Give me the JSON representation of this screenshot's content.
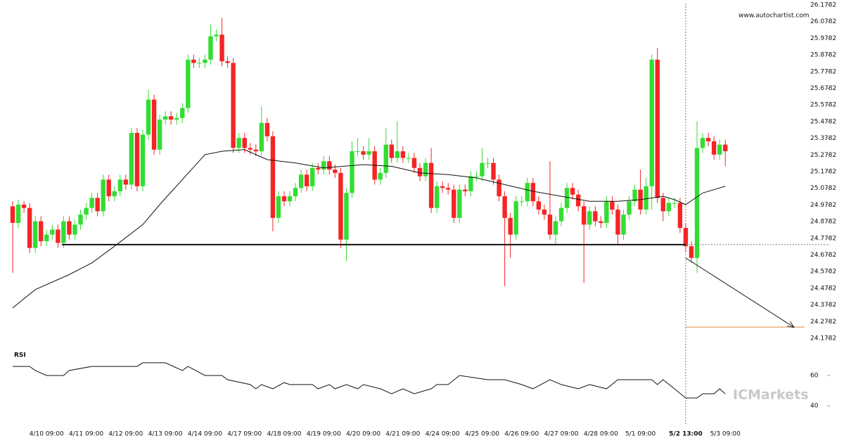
{
  "chart_data": {
    "type": "candlestick",
    "source": "www.autochartist.com",
    "watermark": "ICMarkets",
    "categories": [
      null,
      null,
      null,
      null,
      null,
      null,
      "4/10 09:00",
      null,
      null,
      null,
      null,
      null,
      null,
      "4/11 09:00",
      null,
      null,
      null,
      null,
      null,
      null,
      "4/12 09:00",
      null,
      null,
      null,
      null,
      null,
      null,
      "4/13 09:00",
      null,
      null,
      null,
      null,
      null,
      null,
      "4/14 09:00",
      null,
      null,
      null,
      null,
      null,
      null,
      "4/17 09:00",
      null,
      null,
      null,
      null,
      null,
      null,
      "4/18 09:00",
      null,
      null,
      null,
      null,
      null,
      null,
      "4/19 09:00",
      null,
      null,
      null,
      null,
      null,
      null,
      "4/20 09:00",
      null,
      null,
      null,
      null,
      null,
      null,
      "4/21 09:00",
      null,
      null,
      null,
      null,
      null,
      null,
      "4/24 09:00",
      null,
      null,
      null,
      null,
      null,
      null,
      "4/25 09:00",
      null,
      null,
      null,
      null,
      null,
      null,
      "4/26 09:00",
      null,
      null,
      null,
      null,
      null,
      null,
      "4/27 09:00",
      null,
      null,
      null,
      null,
      null,
      null,
      "4/28 09:00",
      null,
      null,
      null,
      null,
      null,
      null,
      "5/1 09:00",
      null,
      null,
      null,
      null,
      null,
      null,
      null,
      "5/2 13:00",
      null,
      null,
      null,
      null,
      null,
      null,
      "5/3 09:00"
    ],
    "open": [
      24.97,
      24.87,
      24.98,
      24.96,
      24.72,
      24.88,
      24.76,
      24.8,
      24.83,
      24.75,
      24.88,
      24.8,
      24.86,
      24.92,
      24.96,
      25.02,
      24.94,
      25.13,
      25.03,
      25.06,
      25.13,
      25.1,
      25.41,
      25.09,
      25.4,
      25.61,
      25.31,
      25.49,
      25.51,
      25.49,
      25.5,
      25.56,
      25.85,
      25.83,
      25.83,
      25.85,
      25.99,
      26.0,
      25.84,
      25.83,
      25.32,
      25.38,
      25.32,
      25.31,
      25.3,
      25.47,
      25.39,
      24.9,
      25.03,
      25.0,
      25.03,
      25.08,
      25.16,
      25.09,
      25.2,
      25.19,
      25.24,
      25.19,
      25.17,
      24.77,
      25.05,
      25.3,
      25.3,
      25.28,
      25.3,
      25.13,
      25.17,
      25.34,
      25.26,
      25.3,
      25.26,
      25.26,
      25.2,
      25.15,
      25.23,
      24.96,
      25.09,
      25.08,
      25.07,
      24.9,
      25.07,
      25.06,
      25.15,
      25.15,
      25.23,
      25.23,
      25.13,
      25.03,
      24.9,
      24.8,
      25.0,
      25.0,
      25.11,
      25.0,
      24.95,
      24.92,
      24.8,
      24.88,
      24.96,
      25.08,
      25.04,
      24.97,
      24.86,
      24.94,
      24.88,
      24.87,
      25.0,
      24.95,
      24.8,
      24.92,
      25.0,
      25.07,
      24.95,
      25.09,
      25.85,
      25.02,
      24.94,
      24.99,
      24.99,
      24.84,
      24.73,
      24.66,
      25.32,
      25.38,
      25.36,
      25.28,
      25.34
    ],
    "high": [
      25.0,
      25.01,
      25.0,
      24.99,
      24.91,
      24.91,
      24.83,
      24.86,
      24.86,
      24.91,
      24.91,
      24.89,
      24.95,
      24.99,
      25.05,
      25.05,
      25.16,
      25.16,
      25.09,
      25.16,
      25.16,
      25.44,
      25.44,
      25.43,
      25.67,
      25.64,
      25.52,
      25.54,
      25.54,
      25.53,
      25.59,
      25.88,
      25.88,
      25.86,
      25.88,
      26.06,
      26.03,
      26.1,
      25.87,
      25.86,
      25.41,
      25.41,
      25.35,
      25.34,
      25.57,
      25.5,
      25.42,
      25.06,
      25.06,
      25.06,
      25.11,
      25.19,
      25.19,
      25.23,
      25.23,
      25.27,
      25.27,
      25.22,
      25.2,
      25.08,
      25.36,
      25.38,
      25.33,
      25.38,
      25.33,
      25.2,
      25.44,
      25.37,
      25.48,
      25.33,
      25.29,
      25.29,
      25.23,
      25.26,
      25.32,
      25.12,
      25.12,
      25.11,
      25.1,
      25.1,
      25.1,
      25.18,
      25.18,
      25.32,
      25.26,
      25.26,
      25.16,
      25.06,
      24.93,
      25.03,
      25.03,
      25.14,
      25.14,
      25.03,
      24.98,
      25.24,
      24.91,
      24.99,
      25.11,
      25.11,
      25.07,
      25.0,
      24.97,
      24.97,
      24.91,
      25.03,
      25.03,
      24.98,
      24.95,
      25.03,
      25.1,
      25.19,
      25.14,
      25.88,
      25.92,
      25.05,
      25.02,
      25.02,
      25.02,
      24.87,
      24.76,
      25.48,
      25.41,
      25.41,
      25.39,
      25.37,
      25.37
    ],
    "low": [
      24.57,
      24.84,
      24.93,
      24.69,
      24.69,
      24.73,
      24.73,
      24.77,
      24.72,
      24.72,
      24.77,
      24.77,
      24.83,
      24.89,
      24.93,
      24.91,
      24.91,
      25.0,
      25.0,
      25.03,
      25.07,
      25.07,
      25.06,
      25.06,
      25.37,
      25.28,
      25.28,
      25.46,
      25.46,
      25.46,
      25.47,
      25.53,
      25.8,
      25.8,
      25.8,
      25.82,
      25.96,
      25.81,
      25.8,
      25.29,
      25.29,
      25.29,
      25.28,
      25.27,
      25.27,
      25.36,
      24.82,
      24.87,
      24.97,
      24.97,
      25.0,
      25.05,
      25.06,
      25.06,
      25.16,
      25.16,
      25.16,
      25.14,
      24.72,
      24.64,
      25.02,
      25.27,
      25.25,
      25.25,
      25.1,
      25.1,
      25.14,
      25.23,
      25.23,
      25.23,
      25.23,
      25.17,
      25.12,
      25.12,
      24.93,
      24.93,
      25.05,
      25.04,
      24.87,
      24.87,
      25.03,
      25.03,
      25.12,
      25.12,
      25.2,
      25.1,
      25.0,
      24.49,
      24.66,
      24.77,
      24.97,
      24.97,
      24.97,
      24.92,
      24.89,
      24.77,
      24.74,
      24.85,
      24.93,
      25.01,
      24.94,
      24.51,
      24.83,
      24.85,
      24.84,
      24.84,
      24.92,
      24.74,
      24.77,
      24.89,
      24.97,
      24.92,
      24.92,
      24.95,
      24.99,
      24.88,
      24.91,
      24.96,
      24.81,
      24.7,
      24.63,
      24.57,
      25.29,
      25.33,
      25.25,
      25.25,
      25.21
    ],
    "close": [
      24.87,
      24.98,
      24.96,
      24.72,
      24.88,
      24.76,
      24.8,
      24.83,
      24.75,
      24.88,
      24.8,
      24.86,
      24.92,
      24.96,
      25.02,
      24.94,
      25.13,
      25.03,
      25.06,
      25.13,
      25.1,
      25.41,
      25.09,
      25.4,
      25.61,
      25.31,
      25.49,
      25.51,
      25.49,
      25.5,
      25.56,
      25.85,
      25.83,
      25.83,
      25.85,
      25.99,
      26.0,
      25.84,
      25.83,
      25.32,
      25.38,
      25.32,
      25.31,
      25.3,
      25.47,
      25.39,
      24.9,
      25.03,
      25.0,
      25.03,
      25.08,
      25.16,
      25.09,
      25.2,
      25.19,
      25.24,
      25.19,
      25.17,
      24.77,
      25.05,
      25.3,
      25.3,
      25.28,
      25.3,
      25.13,
      25.17,
      25.34,
      25.26,
      25.3,
      25.26,
      25.26,
      25.2,
      25.15,
      25.23,
      24.96,
      25.09,
      25.08,
      25.07,
      24.9,
      25.07,
      25.06,
      25.15,
      25.15,
      25.23,
      25.23,
      25.13,
      25.03,
      24.9,
      24.8,
      25.0,
      25.0,
      25.11,
      25.0,
      24.95,
      24.92,
      24.8,
      24.88,
      24.96,
      25.08,
      25.04,
      24.97,
      24.86,
      24.94,
      24.88,
      24.87,
      25.0,
      24.95,
      24.8,
      24.92,
      25.0,
      25.07,
      24.95,
      25.09,
      25.85,
      25.02,
      24.94,
      24.99,
      24.99,
      24.84,
      24.73,
      24.66,
      25.32,
      25.38,
      25.36,
      25.28,
      25.34,
      25.3
    ],
    "up_color": "#33dd33",
    "down_color": "#f52525",
    "xlim": [
      -2.24,
      144.5
    ],
    "ylim": [
      24.1402,
      26.2077
    ],
    "yticks": [
      24.1782,
      24.2782,
      24.3782,
      24.4782,
      24.5782,
      24.6782,
      24.7782,
      24.8782,
      24.9782,
      25.0782,
      25.1782,
      25.2782,
      25.3782,
      25.4782,
      25.5782,
      25.6782,
      25.7782,
      25.8782,
      25.9782,
      26.0782,
      26.1782
    ],
    "marker_index": 119,
    "ma": {
      "x": [
        0,
        4,
        10,
        14,
        18,
        23,
        26,
        30,
        34,
        37,
        41,
        45,
        50,
        55,
        62,
        67,
        72,
        77,
        82,
        87,
        92,
        97,
        102,
        107,
        111,
        115,
        117,
        119,
        122,
        126
      ],
      "values": [
        24.36,
        24.47,
        24.56,
        24.63,
        24.73,
        24.86,
        24.98,
        25.13,
        25.28,
        25.3,
        25.31,
        25.25,
        25.23,
        25.2,
        25.22,
        25.21,
        25.17,
        25.16,
        25.14,
        25.1,
        25.06,
        25.03,
        25.0,
        25.0,
        25.01,
        25.03,
        25.01,
        24.98,
        25.05,
        25.09
      ],
      "color": "#111111"
    },
    "support": {
      "x": [
        8.7,
        119
      ],
      "value": 24.74,
      "color": "#111111"
    },
    "forecast": {
      "x": [
        119,
        138.1
      ],
      "values": [
        24.66,
        24.245
      ],
      "color": "#222222"
    },
    "target": {
      "x": [
        119,
        140
      ],
      "value": 24.245,
      "color": "#e08a3c"
    },
    "rsi": {
      "label": "RSI",
      "x": [
        0,
        3,
        4,
        6,
        9,
        10,
        14,
        22,
        23,
        27,
        30,
        31,
        34,
        37,
        38,
        42,
        43,
        44,
        46,
        48,
        49,
        53,
        54,
        56,
        57,
        59,
        61,
        62,
        65,
        67,
        69,
        71,
        74,
        75,
        77,
        79,
        84,
        87,
        90,
        92,
        95,
        97,
        100,
        102,
        105,
        107,
        110,
        113,
        114,
        115,
        117,
        119,
        121,
        122,
        124,
        125,
        126
      ],
      "values": [
        66.0,
        66.0,
        63.3,
        60.0,
        60.0,
        63.3,
        66.0,
        66.0,
        68.4,
        68.4,
        63.3,
        66.0,
        60.0,
        60.0,
        57.2,
        54.0,
        51.2,
        54.0,
        51.2,
        55.3,
        54.0,
        54.0,
        51.2,
        54.0,
        51.2,
        54.0,
        51.2,
        54.0,
        51.2,
        47.9,
        51.2,
        47.9,
        51.2,
        54.0,
        54.0,
        60.0,
        57.2,
        57.2,
        54.0,
        51.2,
        57.2,
        54.0,
        51.2,
        54.0,
        51.2,
        57.2,
        57.2,
        57.2,
        54.0,
        57.2,
        51.2,
        45.1,
        45.1,
        47.9,
        47.9,
        51.2,
        47.9
      ],
      "ylim": [
        31.63,
        75.81
      ],
      "yticks": [
        40,
        60
      ],
      "color": "#111111"
    }
  }
}
